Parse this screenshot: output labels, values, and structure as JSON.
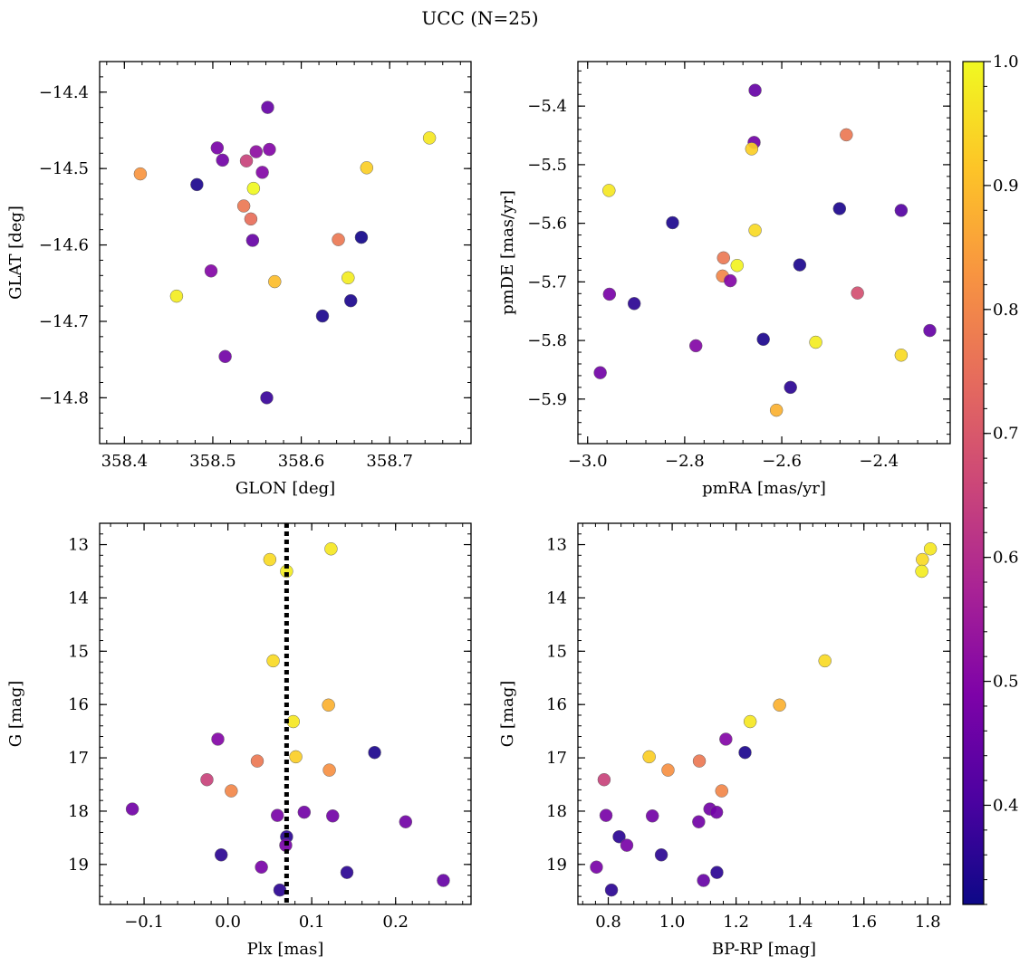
{
  "figure": {
    "title": "UCC (N=25)"
  },
  "colorbar": {
    "colormap": "plasma",
    "range": [
      0.32,
      1.0
    ],
    "tick_labels": [
      "0.4",
      "0.5",
      "0.6",
      "0.7",
      "0.8",
      "0.9",
      "1.0"
    ],
    "tick_values": [
      0.4,
      0.5,
      0.6,
      0.7,
      0.8,
      0.9,
      1.0
    ]
  },
  "chart_data": [
    {
      "type": "scatter",
      "xlabel": "GLON [deg]",
      "ylabel": "GLAT [deg]",
      "xlim": [
        358.372,
        358.792
      ],
      "ylim": [
        -14.86,
        -14.36
      ],
      "x_ticks": [
        358.4,
        358.5,
        358.6,
        358.7
      ],
      "x_tick_labels": [
        "358.4",
        "358.5",
        "358.6",
        "358.7"
      ],
      "y_ticks": [
        -14.4,
        -14.5,
        -14.6,
        -14.7,
        -14.8
      ],
      "y_tick_labels": [
        "−14.4",
        "−14.5",
        "−14.6",
        "−14.7",
        "−14.8"
      ],
      "points": [
        {
          "x": 358.562,
          "y": -14.42,
          "c": 0.45
        },
        {
          "x": 358.505,
          "y": -14.473,
          "c": 0.48
        },
        {
          "x": 358.564,
          "y": -14.475,
          "c": 0.5
        },
        {
          "x": 358.549,
          "y": -14.478,
          "c": 0.52
        },
        {
          "x": 358.511,
          "y": -14.489,
          "c": 0.47
        },
        {
          "x": 358.538,
          "y": -14.49,
          "c": 0.65
        },
        {
          "x": 358.418,
          "y": -14.507,
          "c": 0.83
        },
        {
          "x": 358.556,
          "y": -14.505,
          "c": 0.5
        },
        {
          "x": 358.674,
          "y": -14.499,
          "c": 0.93
        },
        {
          "x": 358.745,
          "y": -14.46,
          "c": 0.97
        },
        {
          "x": 358.482,
          "y": -14.521,
          "c": 0.34
        },
        {
          "x": 358.546,
          "y": -14.526,
          "c": 1.0
        },
        {
          "x": 358.535,
          "y": -14.549,
          "c": 0.77
        },
        {
          "x": 358.543,
          "y": -14.566,
          "c": 0.75
        },
        {
          "x": 358.545,
          "y": -14.594,
          "c": 0.45
        },
        {
          "x": 358.642,
          "y": -14.593,
          "c": 0.77
        },
        {
          "x": 358.668,
          "y": -14.59,
          "c": 0.33
        },
        {
          "x": 358.498,
          "y": -14.634,
          "c": 0.5
        },
        {
          "x": 358.653,
          "y": -14.643,
          "c": 0.98
        },
        {
          "x": 358.459,
          "y": -14.667,
          "c": 0.98
        },
        {
          "x": 358.57,
          "y": -14.648,
          "c": 0.9
        },
        {
          "x": 358.656,
          "y": -14.673,
          "c": 0.34
        },
        {
          "x": 358.624,
          "y": -14.693,
          "c": 0.34
        },
        {
          "x": 358.514,
          "y": -14.746,
          "c": 0.47
        },
        {
          "x": 358.561,
          "y": -14.8,
          "c": 0.38
        }
      ]
    },
    {
      "type": "scatter",
      "xlabel": "pmRA [mas/yr]",
      "ylabel": "pmDE [mas/yr]",
      "xlim": [
        -3.02,
        -2.253
      ],
      "ylim": [
        -5.976,
        -5.324
      ],
      "x_ticks": [
        -3.0,
        -2.8,
        -2.6,
        -2.4
      ],
      "x_tick_labels": [
        "−3.0",
        "−2.8",
        "−2.6",
        "−2.4"
      ],
      "y_ticks": [
        -5.4,
        -5.5,
        -5.6,
        -5.7,
        -5.8,
        -5.9
      ],
      "y_tick_labels": [
        "−5.4",
        "−5.5",
        "−5.6",
        "−5.7",
        "−5.8",
        "−5.9"
      ],
      "points": [
        {
          "x": -2.655,
          "y": -5.373,
          "c": 0.45
        },
        {
          "x": -2.657,
          "y": -5.462,
          "c": 0.47
        },
        {
          "x": -2.662,
          "y": -5.473,
          "c": 0.93
        },
        {
          "x": -2.467,
          "y": -5.449,
          "c": 0.77
        },
        {
          "x": -2.956,
          "y": -5.544,
          "c": 0.97
        },
        {
          "x": -2.825,
          "y": -5.599,
          "c": 0.34
        },
        {
          "x": -2.481,
          "y": -5.575,
          "c": 0.34
        },
        {
          "x": -2.354,
          "y": -5.578,
          "c": 0.42
        },
        {
          "x": -2.655,
          "y": -5.612,
          "c": 0.95
        },
        {
          "x": -2.72,
          "y": -5.659,
          "c": 0.77
        },
        {
          "x": -2.692,
          "y": -5.672,
          "c": 0.99
        },
        {
          "x": -2.563,
          "y": -5.671,
          "c": 0.34
        },
        {
          "x": -2.722,
          "y": -5.69,
          "c": 0.8
        },
        {
          "x": -2.706,
          "y": -5.698,
          "c": 0.5
        },
        {
          "x": -2.955,
          "y": -5.721,
          "c": 0.48
        },
        {
          "x": -2.444,
          "y": -5.719,
          "c": 0.68
        },
        {
          "x": -2.904,
          "y": -5.737,
          "c": 0.36
        },
        {
          "x": -2.295,
          "y": -5.783,
          "c": 0.45
        },
        {
          "x": -2.638,
          "y": -5.798,
          "c": 0.34
        },
        {
          "x": -2.53,
          "y": -5.803,
          "c": 0.98
        },
        {
          "x": -2.777,
          "y": -5.809,
          "c": 0.5
        },
        {
          "x": -2.354,
          "y": -5.825,
          "c": 0.95
        },
        {
          "x": -2.974,
          "y": -5.855,
          "c": 0.47
        },
        {
          "x": -2.582,
          "y": -5.88,
          "c": 0.36
        },
        {
          "x": -2.611,
          "y": -5.919,
          "c": 0.88
        }
      ]
    },
    {
      "type": "scatter",
      "xlabel": "Plx [mas]",
      "ylabel": "G [mag]",
      "xlim": [
        -0.153,
        0.29
      ],
      "ylim": [
        19.75,
        12.6
      ],
      "y_inverted": true,
      "x_ticks": [
        -0.1,
        0.0,
        0.1,
        0.2
      ],
      "x_tick_labels": [
        "−0.1",
        "0.0",
        "0.1",
        "0.2"
      ],
      "y_ticks": [
        13,
        14,
        15,
        16,
        17,
        18,
        19
      ],
      "y_tick_labels": [
        "13",
        "14",
        "15",
        "16",
        "17",
        "18",
        "19"
      ],
      "vline": {
        "x": 0.07,
        "style": "dotted",
        "color": "#000000"
      },
      "points": [
        {
          "x": 0.123,
          "y": 13.08,
          "c": 0.97
        },
        {
          "x": 0.05,
          "y": 13.28,
          "c": 0.95
        },
        {
          "x": 0.07,
          "y": 13.5,
          "c": 0.98
        },
        {
          "x": 0.054,
          "y": 15.18,
          "c": 0.95
        },
        {
          "x": 0.12,
          "y": 16.01,
          "c": 0.88
        },
        {
          "x": 0.078,
          "y": 16.32,
          "c": 0.97
        },
        {
          "x": -0.012,
          "y": 16.65,
          "c": 0.5
        },
        {
          "x": 0.175,
          "y": 16.9,
          "c": 0.34
        },
        {
          "x": 0.081,
          "y": 16.98,
          "c": 0.93
        },
        {
          "x": 0.035,
          "y": 17.06,
          "c": 0.77
        },
        {
          "x": 0.121,
          "y": 17.23,
          "c": 0.82
        },
        {
          "x": -0.025,
          "y": 17.41,
          "c": 0.65
        },
        {
          "x": 0.004,
          "y": 17.62,
          "c": 0.8
        },
        {
          "x": -0.114,
          "y": 17.96,
          "c": 0.47
        },
        {
          "x": 0.091,
          "y": 18.02,
          "c": 0.47
        },
        {
          "x": 0.059,
          "y": 18.08,
          "c": 0.48
        },
        {
          "x": 0.125,
          "y": 18.09,
          "c": 0.47
        },
        {
          "x": 0.212,
          "y": 18.2,
          "c": 0.47
        },
        {
          "x": 0.07,
          "y": 18.48,
          "c": 0.36
        },
        {
          "x": 0.069,
          "y": 18.64,
          "c": 0.48
        },
        {
          "x": -0.008,
          "y": 18.82,
          "c": 0.36
        },
        {
          "x": 0.04,
          "y": 19.05,
          "c": 0.48
        },
        {
          "x": 0.142,
          "y": 19.15,
          "c": 0.36
        },
        {
          "x": 0.257,
          "y": 19.3,
          "c": 0.45
        },
        {
          "x": 0.062,
          "y": 19.48,
          "c": 0.36
        }
      ]
    },
    {
      "type": "scatter",
      "xlabel": "BP-RP [mag]",
      "ylabel": "G [mag]",
      "xlim": [
        0.705,
        1.87
      ],
      "ylim": [
        19.75,
        12.6
      ],
      "y_inverted": true,
      "x_ticks": [
        0.8,
        1.0,
        1.2,
        1.4,
        1.6,
        1.8
      ],
      "x_tick_labels": [
        "0.8",
        "1.0",
        "1.2",
        "1.4",
        "1.6",
        "1.8"
      ],
      "y_ticks": [
        13,
        14,
        15,
        16,
        17,
        18,
        19
      ],
      "y_tick_labels": [
        "13",
        "14",
        "15",
        "16",
        "17",
        "18",
        "19"
      ],
      "points": [
        {
          "x": 1.808,
          "y": 13.08,
          "c": 0.97
        },
        {
          "x": 1.783,
          "y": 13.28,
          "c": 0.95
        },
        {
          "x": 1.781,
          "y": 13.5,
          "c": 0.98
        },
        {
          "x": 1.478,
          "y": 15.18,
          "c": 0.95
        },
        {
          "x": 1.336,
          "y": 16.01,
          "c": 0.88
        },
        {
          "x": 1.244,
          "y": 16.32,
          "c": 0.97
        },
        {
          "x": 1.168,
          "y": 16.65,
          "c": 0.5
        },
        {
          "x": 1.228,
          "y": 16.9,
          "c": 0.34
        },
        {
          "x": 0.928,
          "y": 16.98,
          "c": 0.93
        },
        {
          "x": 1.085,
          "y": 17.06,
          "c": 0.77
        },
        {
          "x": 0.987,
          "y": 17.23,
          "c": 0.82
        },
        {
          "x": 0.787,
          "y": 17.41,
          "c": 0.65
        },
        {
          "x": 1.155,
          "y": 17.62,
          "c": 0.8
        },
        {
          "x": 1.118,
          "y": 17.96,
          "c": 0.47
        },
        {
          "x": 1.139,
          "y": 18.02,
          "c": 0.47
        },
        {
          "x": 0.793,
          "y": 18.08,
          "c": 0.48
        },
        {
          "x": 0.938,
          "y": 18.09,
          "c": 0.47
        },
        {
          "x": 1.083,
          "y": 18.2,
          "c": 0.47
        },
        {
          "x": 0.834,
          "y": 18.48,
          "c": 0.36
        },
        {
          "x": 0.858,
          "y": 18.64,
          "c": 0.48
        },
        {
          "x": 0.966,
          "y": 18.82,
          "c": 0.36
        },
        {
          "x": 0.763,
          "y": 19.05,
          "c": 0.48
        },
        {
          "x": 1.14,
          "y": 19.15,
          "c": 0.36
        },
        {
          "x": 1.098,
          "y": 19.3,
          "c": 0.45
        },
        {
          "x": 0.81,
          "y": 19.48,
          "c": 0.36
        }
      ]
    }
  ]
}
